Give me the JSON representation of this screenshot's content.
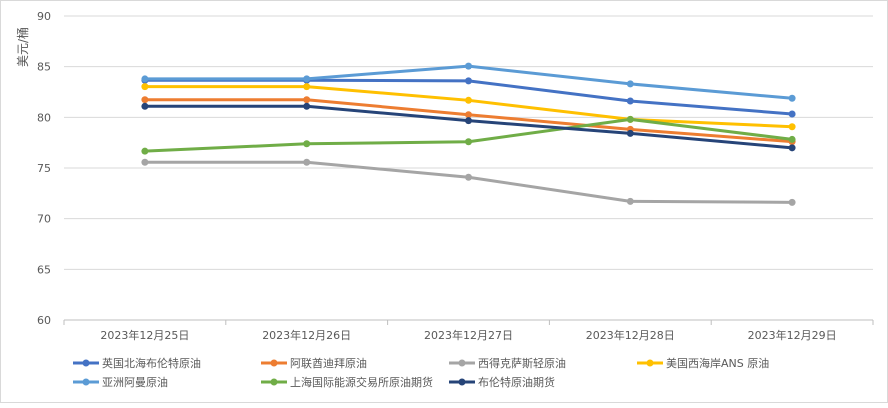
{
  "chart_data": {
    "type": "line",
    "title": "",
    "xlabel": "",
    "ylabel": "美元/桶",
    "ylim": [
      60,
      90
    ],
    "yticks": [
      "60",
      "65",
      "70",
      "75",
      "80",
      "85",
      "90"
    ],
    "grid": true,
    "legend_position": "bottom",
    "categories": [
      "2023年12月25日",
      "2023年12月26日",
      "2023年12月27日",
      "2023年12月28日",
      "2023年12月29日"
    ],
    "series": [
      {
        "name": "英国北海布伦特原油",
        "color": "#4472C4",
        "values": [
          83.66,
          83.66,
          83.6,
          81.61,
          80.33
        ]
      },
      {
        "name": "阿联酋迪拜原油",
        "color": "#ED7D31",
        "values": [
          81.74,
          81.74,
          80.26,
          78.81,
          77.6
        ]
      },
      {
        "name": "西得克萨斯轻原油",
        "color": "#A5A5A5",
        "values": [
          75.57,
          75.57,
          74.09,
          71.71,
          71.61
        ]
      },
      {
        "name": "美国西海岸ANS 原油",
        "color": "#FFC000",
        "values": [
          83.03,
          83.03,
          81.68,
          79.8,
          79.07
        ]
      },
      {
        "name": "亚洲阿曼原油",
        "color": "#5B9BD5",
        "values": [
          83.79,
          83.8,
          85.05,
          83.3,
          81.88
        ]
      },
      {
        "name": "上海国际能源交易所原油期货",
        "color": "#70AD47",
        "values": [
          76.66,
          77.39,
          77.59,
          79.8,
          77.82
        ]
      },
      {
        "name": "布伦特原油期货",
        "color": "#264478",
        "values": [
          81.09,
          81.09,
          79.67,
          78.42,
          76.99
        ]
      }
    ]
  }
}
